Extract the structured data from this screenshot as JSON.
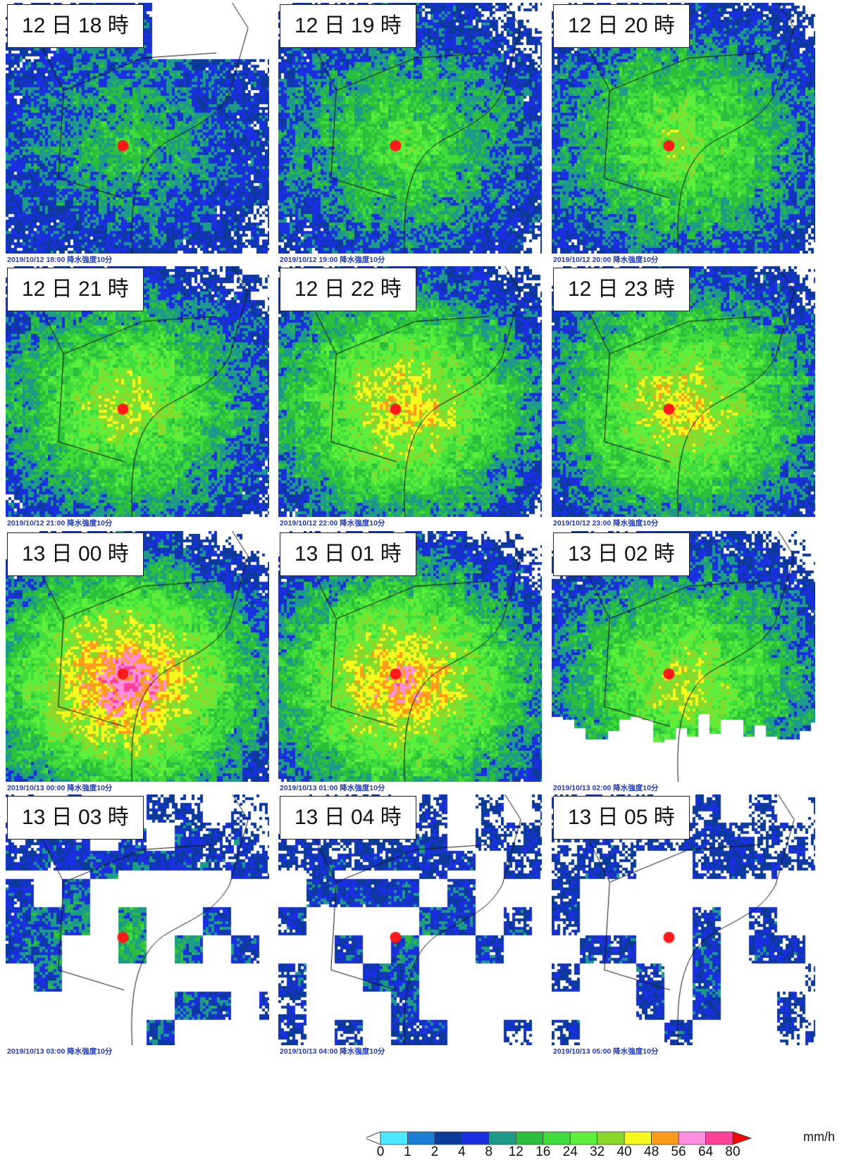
{
  "panels": [
    {
      "label": "12 日 18 時",
      "caption": "2019/10/12 18:00 降水強度10分",
      "level": 0.32,
      "sky": "top"
    },
    {
      "label": "12 日 19 時",
      "caption": "2019/10/12 19:00 降水強度10分",
      "level": 0.45,
      "sky": "none"
    },
    {
      "label": "12 日 20 時",
      "caption": "2019/10/12 20:00 降水強度10分",
      "level": 0.55,
      "sky": "none"
    },
    {
      "label": "12 日 21 時",
      "caption": "2019/10/12 21:00 降水強度10分",
      "level": 0.62,
      "sky": "none"
    },
    {
      "label": "12 日 22 時",
      "caption": "2019/10/12 22:00 降水強度10分",
      "level": 0.72,
      "sky": "none"
    },
    {
      "label": "12 日 23 時",
      "caption": "2019/10/12 23:00 降水強度10分",
      "level": 0.7,
      "sky": "none"
    },
    {
      "label": "13 日 00 時",
      "caption": "2019/10/13 00:00 降水強度10分",
      "level": 0.88,
      "sky": "none"
    },
    {
      "label": "13 日 01 時",
      "caption": "2019/10/13 01:00 降水強度10分",
      "level": 0.8,
      "sky": "none"
    },
    {
      "label": "13 日 02 時",
      "caption": "2019/10/13 02:00 降水強度10分",
      "level": 0.62,
      "sky": "partial"
    },
    {
      "label": "13 日 03 時",
      "caption": "2019/10/13 03:00 降水強度10分",
      "level": 0.3,
      "sky": "mostly"
    },
    {
      "label": "13 日 04 時",
      "caption": "2019/10/13 04:00 降水強度10分",
      "level": 0.18,
      "sky": "mostly"
    },
    {
      "label": "13 日 05 時",
      "caption": "2019/10/13 05:00 降水強度10分",
      "level": 0.12,
      "sky": "mostly"
    }
  ],
  "legend": {
    "unit": "mm/h",
    "ticks": [
      "0",
      "1",
      "2",
      "4",
      "8",
      "12",
      "16",
      "24",
      "32",
      "40",
      "48",
      "56",
      "64",
      "80"
    ],
    "colors": [
      "#4de8ff",
      "#1a7fd4",
      "#0c3a9a",
      "#1a2fe0",
      "#1e9a8a",
      "#2cbf3c",
      "#3fdc3c",
      "#5cf03c",
      "#8cd82a",
      "#f6f81e",
      "#ff9a1a",
      "#ff8ee0",
      "#ff3f9a"
    ],
    "below_color": "#ffffff",
    "above_color": "#ff0000"
  },
  "marker_color": "#ff1a1a"
}
